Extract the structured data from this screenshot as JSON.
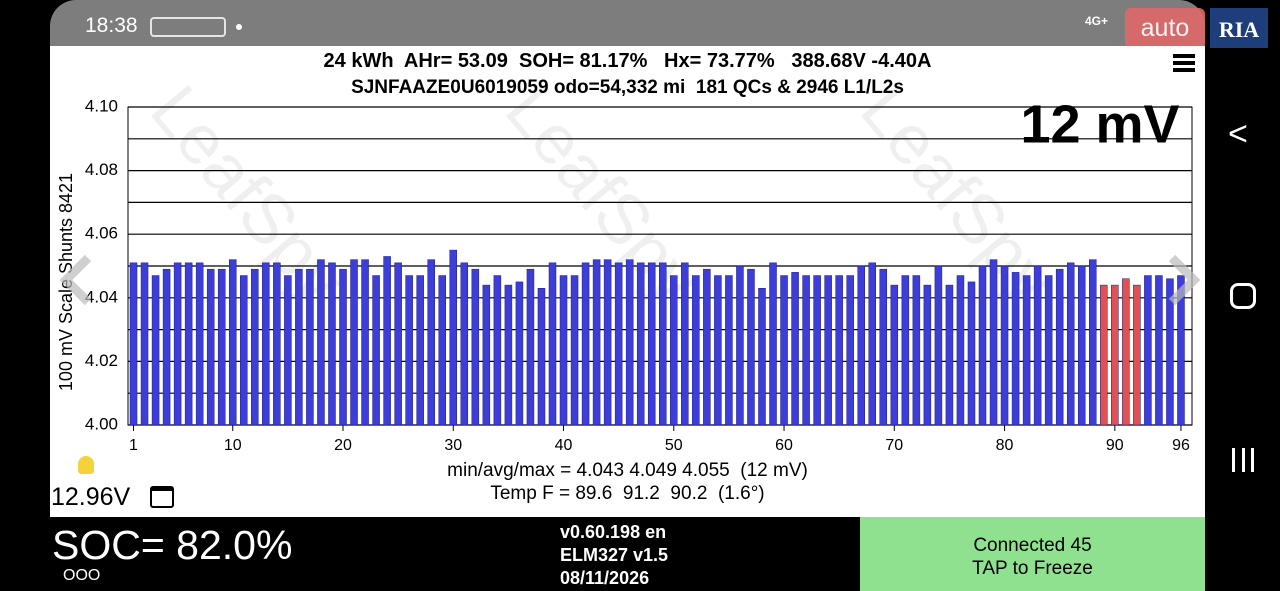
{
  "status_bar": {
    "time": "18:38",
    "network": "4G+"
  },
  "watermark_logo": {
    "brand": "auto",
    "badge": "RIA"
  },
  "header": {
    "line1": "24 kWh  AHr= 53.09  SOH= 81.17%   Hx= 73.77%   388.68V -4.40A",
    "line2": "SJNFAAZE0U6019059 odo=54,332 mi  181 QCs & 2946 L1/L2s"
  },
  "spread_label": "12 mV",
  "watermark": "LeafSpy",
  "chart_data": {
    "type": "bar",
    "ylabel": "100 mV Scale  Shunts 8421",
    "x": [
      1,
      2,
      3,
      4,
      5,
      6,
      7,
      8,
      9,
      10,
      11,
      12,
      13,
      14,
      15,
      16,
      17,
      18,
      19,
      20,
      21,
      22,
      23,
      24,
      25,
      26,
      27,
      28,
      29,
      30,
      31,
      32,
      33,
      34,
      35,
      36,
      37,
      38,
      39,
      40,
      41,
      42,
      43,
      44,
      45,
      46,
      47,
      48,
      49,
      50,
      51,
      52,
      53,
      54,
      55,
      56,
      57,
      58,
      59,
      60,
      61,
      62,
      63,
      64,
      65,
      66,
      67,
      68,
      69,
      70,
      71,
      72,
      73,
      74,
      75,
      76,
      77,
      78,
      79,
      80,
      81,
      82,
      83,
      84,
      85,
      86,
      87,
      88,
      89,
      90,
      91,
      92,
      93,
      94,
      95,
      96
    ],
    "values": [
      4.051,
      4.051,
      4.047,
      4.049,
      4.051,
      4.051,
      4.051,
      4.049,
      4.049,
      4.052,
      4.047,
      4.049,
      4.051,
      4.051,
      4.047,
      4.049,
      4.049,
      4.052,
      4.051,
      4.049,
      4.052,
      4.052,
      4.047,
      4.053,
      4.051,
      4.047,
      4.047,
      4.052,
      4.047,
      4.055,
      4.051,
      4.049,
      4.044,
      4.047,
      4.044,
      4.045,
      4.049,
      4.043,
      4.051,
      4.047,
      4.047,
      4.051,
      4.052,
      4.052,
      4.051,
      4.052,
      4.051,
      4.051,
      4.051,
      4.047,
      4.051,
      4.047,
      4.049,
      4.047,
      4.047,
      4.05,
      4.049,
      4.043,
      4.051,
      4.047,
      4.048,
      4.047,
      4.047,
      4.047,
      4.047,
      4.047,
      4.05,
      4.051,
      4.049,
      4.044,
      4.047,
      4.047,
      4.044,
      4.05,
      4.044,
      4.047,
      4.045,
      4.05,
      4.052,
      4.05,
      4.048,
      4.047,
      4.05,
      4.047,
      4.049,
      4.051,
      4.05,
      4.052,
      4.044,
      4.044,
      4.046,
      4.044,
      4.047,
      4.047,
      4.046,
      4.047
    ],
    "colors": [
      "#3d3dd8",
      "#3d3dd8",
      "#3d3dd8",
      "#3d3dd8",
      "#3d3dd8",
      "#3d3dd8",
      "#3d3dd8",
      "#3d3dd8",
      "#3d3dd8",
      "#3d3dd8",
      "#3d3dd8",
      "#3d3dd8",
      "#3d3dd8",
      "#3d3dd8",
      "#3d3dd8",
      "#3d3dd8",
      "#3d3dd8",
      "#3d3dd8",
      "#3d3dd8",
      "#3d3dd8",
      "#3d3dd8",
      "#3d3dd8",
      "#3d3dd8",
      "#3d3dd8",
      "#3d3dd8",
      "#3d3dd8",
      "#3d3dd8",
      "#3d3dd8",
      "#3d3dd8",
      "#3d3dd8",
      "#3d3dd8",
      "#3d3dd8",
      "#3d3dd8",
      "#3d3dd8",
      "#3d3dd8",
      "#3d3dd8",
      "#3d3dd8",
      "#3d3dd8",
      "#3d3dd8",
      "#3d3dd8",
      "#3d3dd8",
      "#3d3dd8",
      "#3d3dd8",
      "#3d3dd8",
      "#3d3dd8",
      "#3d3dd8",
      "#3d3dd8",
      "#3d3dd8",
      "#3d3dd8",
      "#3d3dd8",
      "#3d3dd8",
      "#3d3dd8",
      "#3d3dd8",
      "#3d3dd8",
      "#3d3dd8",
      "#3d3dd8",
      "#3d3dd8",
      "#3d3dd8",
      "#3d3dd8",
      "#3d3dd8",
      "#3d3dd8",
      "#3d3dd8",
      "#3d3dd8",
      "#3d3dd8",
      "#3d3dd8",
      "#3d3dd8",
      "#3d3dd8",
      "#3d3dd8",
      "#3d3dd8",
      "#3d3dd8",
      "#3d3dd8",
      "#3d3dd8",
      "#3d3dd8",
      "#3d3dd8",
      "#3d3dd8",
      "#3d3dd8",
      "#3d3dd8",
      "#3d3dd8",
      "#3d3dd8",
      "#3d3dd8",
      "#3d3dd8",
      "#3d3dd8",
      "#3d3dd8",
      "#3d3dd8",
      "#3d3dd8",
      "#3d3dd8",
      "#3d3dd8",
      "#3d3dd8",
      "#e05252",
      "#e05252",
      "#e05252",
      "#e05252",
      "#3d3dd8",
      "#3d3dd8",
      "#3d3dd8",
      "#3d3dd8"
    ],
    "xlim": [
      0.5,
      97
    ],
    "xticks": [
      1,
      10,
      20,
      30,
      40,
      50,
      60,
      70,
      80,
      90,
      96
    ],
    "ylim": [
      4,
      4.1
    ],
    "yticks": [
      {
        "value": 4.1,
        "label": "4.10"
      },
      4.08,
      4.06,
      4.04,
      4.02,
      {
        "value": 4,
        "label": "4.00"
      }
    ],
    "yminor": [
      4.09,
      4.07,
      4.05,
      4.03,
      4.01
    ],
    "grid": true
  },
  "stats": {
    "voltage_line": "min/avg/max = 4.043 4.049 4.055  (12 mV)",
    "temp_line": "Temp F = 89.6  91.2  90.2  (1.6°)"
  },
  "aux_voltage": "12.96V",
  "footer": {
    "soc": "SOC= 82.0%",
    "dots": "OOO",
    "version": "v0.60.198 en",
    "adapter": "ELM327 v1.5",
    "date": "08/11/2026",
    "connection": "Connected 45",
    "action": "TAP to Freeze"
  }
}
